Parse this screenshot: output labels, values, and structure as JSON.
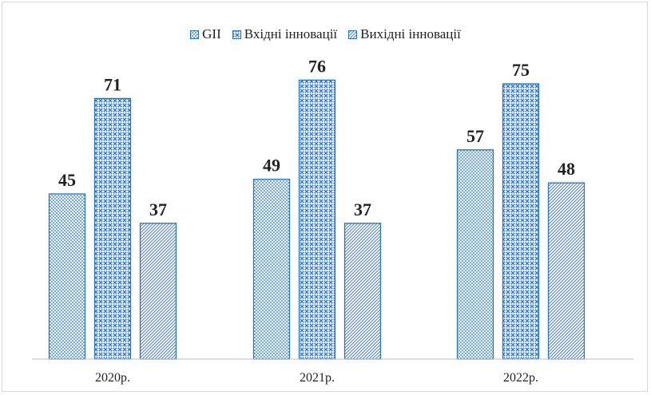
{
  "chart_data": {
    "type": "bar",
    "categories": [
      "2020р.",
      "2021р.",
      "2022р."
    ],
    "series": [
      {
        "name": "GII",
        "values": [
          45,
          49,
          57
        ],
        "pattern": "fine-dots"
      },
      {
        "name": "Вхідні інновації",
        "values": [
          71,
          76,
          75
        ],
        "pattern": "crosshatch"
      },
      {
        "name": "Вихідні інновації",
        "values": [
          37,
          37,
          48
        ],
        "pattern": "diagonal"
      }
    ],
    "title": "",
    "xlabel": "",
    "ylabel": "",
    "ylim": [
      0,
      80
    ],
    "grid": false,
    "legend_position": "top",
    "data_labels": true
  },
  "colors": {
    "stroke": "#2E75B6",
    "fill_light": "#DEEAF6",
    "axis": "#bfbfbf",
    "text": "#222222"
  }
}
